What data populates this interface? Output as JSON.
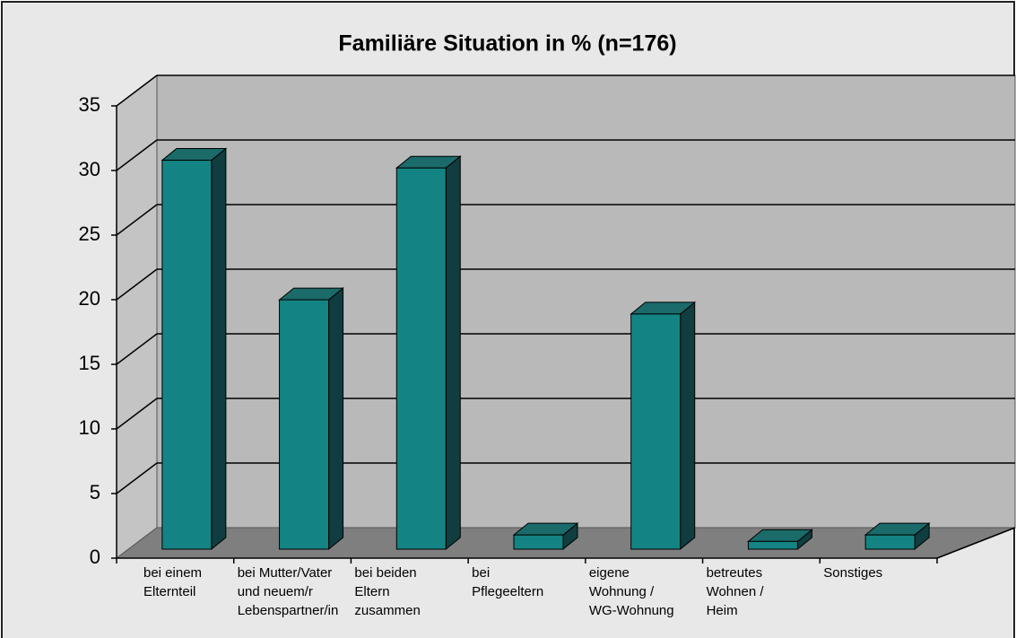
{
  "chart_data": {
    "type": "bar3d",
    "title": "Familiäre Situation in % (n=176)",
    "categories": [
      "bei einem\nElternteil",
      "bei Mutter/Vater\nund neuem/r\nLebenspartner/in",
      "bei beiden\nEltern\nzusammen",
      "bei\nPflegeeltern",
      "eigene\nWohnung /\nWG-Wohnung",
      "betreutes\nWohnen /\nHeim",
      "Sonstiges"
    ],
    "values": [
      30.1,
      19.3,
      29.5,
      1.1,
      18.2,
      0.6,
      1.1
    ],
    "color": "#138483",
    "ylim": [
      0,
      35
    ],
    "yticks": [
      0,
      5,
      10,
      15,
      20,
      25,
      30,
      35
    ],
    "grid": true
  }
}
